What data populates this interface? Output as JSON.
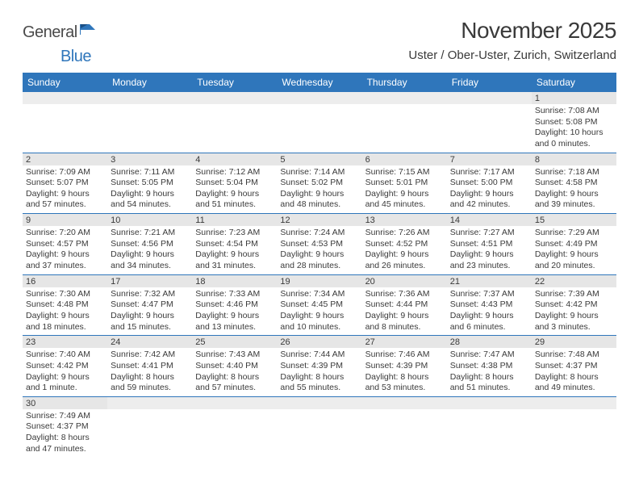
{
  "logo": {
    "part1": "General",
    "part2": "Blue"
  },
  "title": "November 2025",
  "location": "Uster / Ober-Uster, Zurich, Switzerland",
  "colors": {
    "header_bg": "#2f76bb",
    "header_text": "#ffffff",
    "daynum_bg": "#e6e6e6",
    "blank_bg": "#ededed",
    "border": "#2f76bb",
    "text": "#3a3a3a"
  },
  "day_names": [
    "Sunday",
    "Monday",
    "Tuesday",
    "Wednesday",
    "Thursday",
    "Friday",
    "Saturday"
  ],
  "weeks": [
    [
      null,
      null,
      null,
      null,
      null,
      null,
      {
        "n": "1",
        "sunrise": "Sunrise: 7:08 AM",
        "sunset": "Sunset: 5:08 PM",
        "day1": "Daylight: 10 hours",
        "day2": "and 0 minutes."
      }
    ],
    [
      {
        "n": "2",
        "sunrise": "Sunrise: 7:09 AM",
        "sunset": "Sunset: 5:07 PM",
        "day1": "Daylight: 9 hours",
        "day2": "and 57 minutes."
      },
      {
        "n": "3",
        "sunrise": "Sunrise: 7:11 AM",
        "sunset": "Sunset: 5:05 PM",
        "day1": "Daylight: 9 hours",
        "day2": "and 54 minutes."
      },
      {
        "n": "4",
        "sunrise": "Sunrise: 7:12 AM",
        "sunset": "Sunset: 5:04 PM",
        "day1": "Daylight: 9 hours",
        "day2": "and 51 minutes."
      },
      {
        "n": "5",
        "sunrise": "Sunrise: 7:14 AM",
        "sunset": "Sunset: 5:02 PM",
        "day1": "Daylight: 9 hours",
        "day2": "and 48 minutes."
      },
      {
        "n": "6",
        "sunrise": "Sunrise: 7:15 AM",
        "sunset": "Sunset: 5:01 PM",
        "day1": "Daylight: 9 hours",
        "day2": "and 45 minutes."
      },
      {
        "n": "7",
        "sunrise": "Sunrise: 7:17 AM",
        "sunset": "Sunset: 5:00 PM",
        "day1": "Daylight: 9 hours",
        "day2": "and 42 minutes."
      },
      {
        "n": "8",
        "sunrise": "Sunrise: 7:18 AM",
        "sunset": "Sunset: 4:58 PM",
        "day1": "Daylight: 9 hours",
        "day2": "and 39 minutes."
      }
    ],
    [
      {
        "n": "9",
        "sunrise": "Sunrise: 7:20 AM",
        "sunset": "Sunset: 4:57 PM",
        "day1": "Daylight: 9 hours",
        "day2": "and 37 minutes."
      },
      {
        "n": "10",
        "sunrise": "Sunrise: 7:21 AM",
        "sunset": "Sunset: 4:56 PM",
        "day1": "Daylight: 9 hours",
        "day2": "and 34 minutes."
      },
      {
        "n": "11",
        "sunrise": "Sunrise: 7:23 AM",
        "sunset": "Sunset: 4:54 PM",
        "day1": "Daylight: 9 hours",
        "day2": "and 31 minutes."
      },
      {
        "n": "12",
        "sunrise": "Sunrise: 7:24 AM",
        "sunset": "Sunset: 4:53 PM",
        "day1": "Daylight: 9 hours",
        "day2": "and 28 minutes."
      },
      {
        "n": "13",
        "sunrise": "Sunrise: 7:26 AM",
        "sunset": "Sunset: 4:52 PM",
        "day1": "Daylight: 9 hours",
        "day2": "and 26 minutes."
      },
      {
        "n": "14",
        "sunrise": "Sunrise: 7:27 AM",
        "sunset": "Sunset: 4:51 PM",
        "day1": "Daylight: 9 hours",
        "day2": "and 23 minutes."
      },
      {
        "n": "15",
        "sunrise": "Sunrise: 7:29 AM",
        "sunset": "Sunset: 4:49 PM",
        "day1": "Daylight: 9 hours",
        "day2": "and 20 minutes."
      }
    ],
    [
      {
        "n": "16",
        "sunrise": "Sunrise: 7:30 AM",
        "sunset": "Sunset: 4:48 PM",
        "day1": "Daylight: 9 hours",
        "day2": "and 18 minutes."
      },
      {
        "n": "17",
        "sunrise": "Sunrise: 7:32 AM",
        "sunset": "Sunset: 4:47 PM",
        "day1": "Daylight: 9 hours",
        "day2": "and 15 minutes."
      },
      {
        "n": "18",
        "sunrise": "Sunrise: 7:33 AM",
        "sunset": "Sunset: 4:46 PM",
        "day1": "Daylight: 9 hours",
        "day2": "and 13 minutes."
      },
      {
        "n": "19",
        "sunrise": "Sunrise: 7:34 AM",
        "sunset": "Sunset: 4:45 PM",
        "day1": "Daylight: 9 hours",
        "day2": "and 10 minutes."
      },
      {
        "n": "20",
        "sunrise": "Sunrise: 7:36 AM",
        "sunset": "Sunset: 4:44 PM",
        "day1": "Daylight: 9 hours",
        "day2": "and 8 minutes."
      },
      {
        "n": "21",
        "sunrise": "Sunrise: 7:37 AM",
        "sunset": "Sunset: 4:43 PM",
        "day1": "Daylight: 9 hours",
        "day2": "and 6 minutes."
      },
      {
        "n": "22",
        "sunrise": "Sunrise: 7:39 AM",
        "sunset": "Sunset: 4:42 PM",
        "day1": "Daylight: 9 hours",
        "day2": "and 3 minutes."
      }
    ],
    [
      {
        "n": "23",
        "sunrise": "Sunrise: 7:40 AM",
        "sunset": "Sunset: 4:42 PM",
        "day1": "Daylight: 9 hours",
        "day2": "and 1 minute."
      },
      {
        "n": "24",
        "sunrise": "Sunrise: 7:42 AM",
        "sunset": "Sunset: 4:41 PM",
        "day1": "Daylight: 8 hours",
        "day2": "and 59 minutes."
      },
      {
        "n": "25",
        "sunrise": "Sunrise: 7:43 AM",
        "sunset": "Sunset: 4:40 PM",
        "day1": "Daylight: 8 hours",
        "day2": "and 57 minutes."
      },
      {
        "n": "26",
        "sunrise": "Sunrise: 7:44 AM",
        "sunset": "Sunset: 4:39 PM",
        "day1": "Daylight: 8 hours",
        "day2": "and 55 minutes."
      },
      {
        "n": "27",
        "sunrise": "Sunrise: 7:46 AM",
        "sunset": "Sunset: 4:39 PM",
        "day1": "Daylight: 8 hours",
        "day2": "and 53 minutes."
      },
      {
        "n": "28",
        "sunrise": "Sunrise: 7:47 AM",
        "sunset": "Sunset: 4:38 PM",
        "day1": "Daylight: 8 hours",
        "day2": "and 51 minutes."
      },
      {
        "n": "29",
        "sunrise": "Sunrise: 7:48 AM",
        "sunset": "Sunset: 4:37 PM",
        "day1": "Daylight: 8 hours",
        "day2": "and 49 minutes."
      }
    ],
    [
      {
        "n": "30",
        "sunrise": "Sunrise: 7:49 AM",
        "sunset": "Sunset: 4:37 PM",
        "day1": "Daylight: 8 hours",
        "day2": "and 47 minutes."
      },
      null,
      null,
      null,
      null,
      null,
      null
    ]
  ]
}
